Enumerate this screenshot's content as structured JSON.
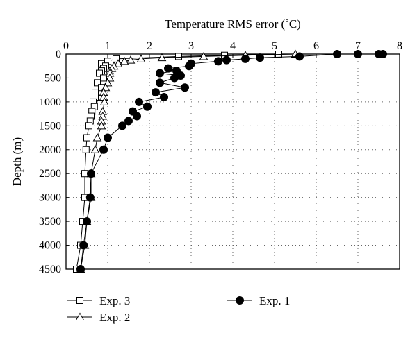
{
  "chart_data": {
    "type": "scatter",
    "title": "",
    "xlabel": "Temperature RMS error (˚C)",
    "ylabel": "Depth (m)",
    "x_axis_position": "top",
    "y_inverted": true,
    "xlim": [
      0,
      8
    ],
    "ylim": [
      0,
      4500
    ],
    "xticks": [
      0,
      1,
      2,
      3,
      4,
      5,
      6,
      7,
      8
    ],
    "yticks": [
      0,
      500,
      1000,
      1500,
      2000,
      2500,
      3000,
      3500,
      4000,
      4500
    ],
    "grid": "dotted",
    "legend_position": "bottom",
    "series": [
      {
        "name": "Exp. 3",
        "marker": "square-open",
        "points": [
          [
            5.1,
            0
          ],
          [
            3.8,
            25
          ],
          [
            2.7,
            50
          ],
          [
            1.2,
            100
          ],
          [
            1.0,
            150
          ],
          [
            0.85,
            200
          ],
          [
            0.95,
            250
          ],
          [
            0.9,
            300
          ],
          [
            0.85,
            350
          ],
          [
            0.8,
            400
          ],
          [
            0.9,
            500
          ],
          [
            0.75,
            600
          ],
          [
            0.85,
            700
          ],
          [
            0.7,
            800
          ],
          [
            0.7,
            900
          ],
          [
            0.65,
            1000
          ],
          [
            0.68,
            1100
          ],
          [
            0.62,
            1200
          ],
          [
            0.6,
            1300
          ],
          [
            0.58,
            1400
          ],
          [
            0.55,
            1500
          ],
          [
            0.5,
            1750
          ],
          [
            0.48,
            2000
          ],
          [
            0.45,
            2500
          ],
          [
            0.45,
            3000
          ],
          [
            0.4,
            3500
          ],
          [
            0.35,
            4000
          ],
          [
            0.25,
            4500
          ]
        ]
      },
      {
        "name": "Exp. 2",
        "marker": "triangle-open",
        "points": [
          [
            5.5,
            0
          ],
          [
            4.3,
            25
          ],
          [
            3.3,
            50
          ],
          [
            2.3,
            75
          ],
          [
            1.8,
            100
          ],
          [
            1.55,
            125
          ],
          [
            1.4,
            150
          ],
          [
            1.25,
            200
          ],
          [
            1.15,
            250
          ],
          [
            1.1,
            300
          ],
          [
            1.05,
            350
          ],
          [
            1.05,
            400
          ],
          [
            1.05,
            500
          ],
          [
            1.0,
            600
          ],
          [
            0.95,
            700
          ],
          [
            0.9,
            800
          ],
          [
            0.9,
            900
          ],
          [
            0.92,
            1000
          ],
          [
            0.88,
            1200
          ],
          [
            0.88,
            1300
          ],
          [
            0.85,
            1400
          ],
          [
            0.85,
            1500
          ],
          [
            0.75,
            1750
          ],
          [
            0.7,
            2000
          ],
          [
            0.6,
            2500
          ],
          [
            0.6,
            3000
          ],
          [
            0.5,
            3500
          ],
          [
            0.45,
            4000
          ],
          [
            0.35,
            4500
          ]
        ]
      },
      {
        "name": "Exp. 1",
        "marker": "circle-filled",
        "points": [
          [
            7.6,
            0
          ],
          [
            7.5,
            0
          ],
          [
            7.0,
            0
          ],
          [
            6.5,
            0
          ],
          [
            5.6,
            50
          ],
          [
            4.65,
            75
          ],
          [
            4.3,
            100
          ],
          [
            3.85,
            125
          ],
          [
            3.65,
            150
          ],
          [
            3.0,
            200
          ],
          [
            2.95,
            250
          ],
          [
            2.45,
            300
          ],
          [
            2.65,
            350
          ],
          [
            2.25,
            400
          ],
          [
            2.75,
            450
          ],
          [
            2.6,
            500
          ],
          [
            2.25,
            600
          ],
          [
            2.85,
            700
          ],
          [
            2.15,
            800
          ],
          [
            2.35,
            900
          ],
          [
            1.75,
            1000
          ],
          [
            1.95,
            1100
          ],
          [
            1.6,
            1200
          ],
          [
            1.7,
            1300
          ],
          [
            1.5,
            1400
          ],
          [
            1.35,
            1500
          ],
          [
            1.0,
            1750
          ],
          [
            0.9,
            2000
          ],
          [
            0.6,
            2500
          ],
          [
            0.58,
            3000
          ],
          [
            0.5,
            3500
          ],
          [
            0.42,
            4000
          ],
          [
            0.35,
            4500
          ]
        ]
      }
    ]
  }
}
